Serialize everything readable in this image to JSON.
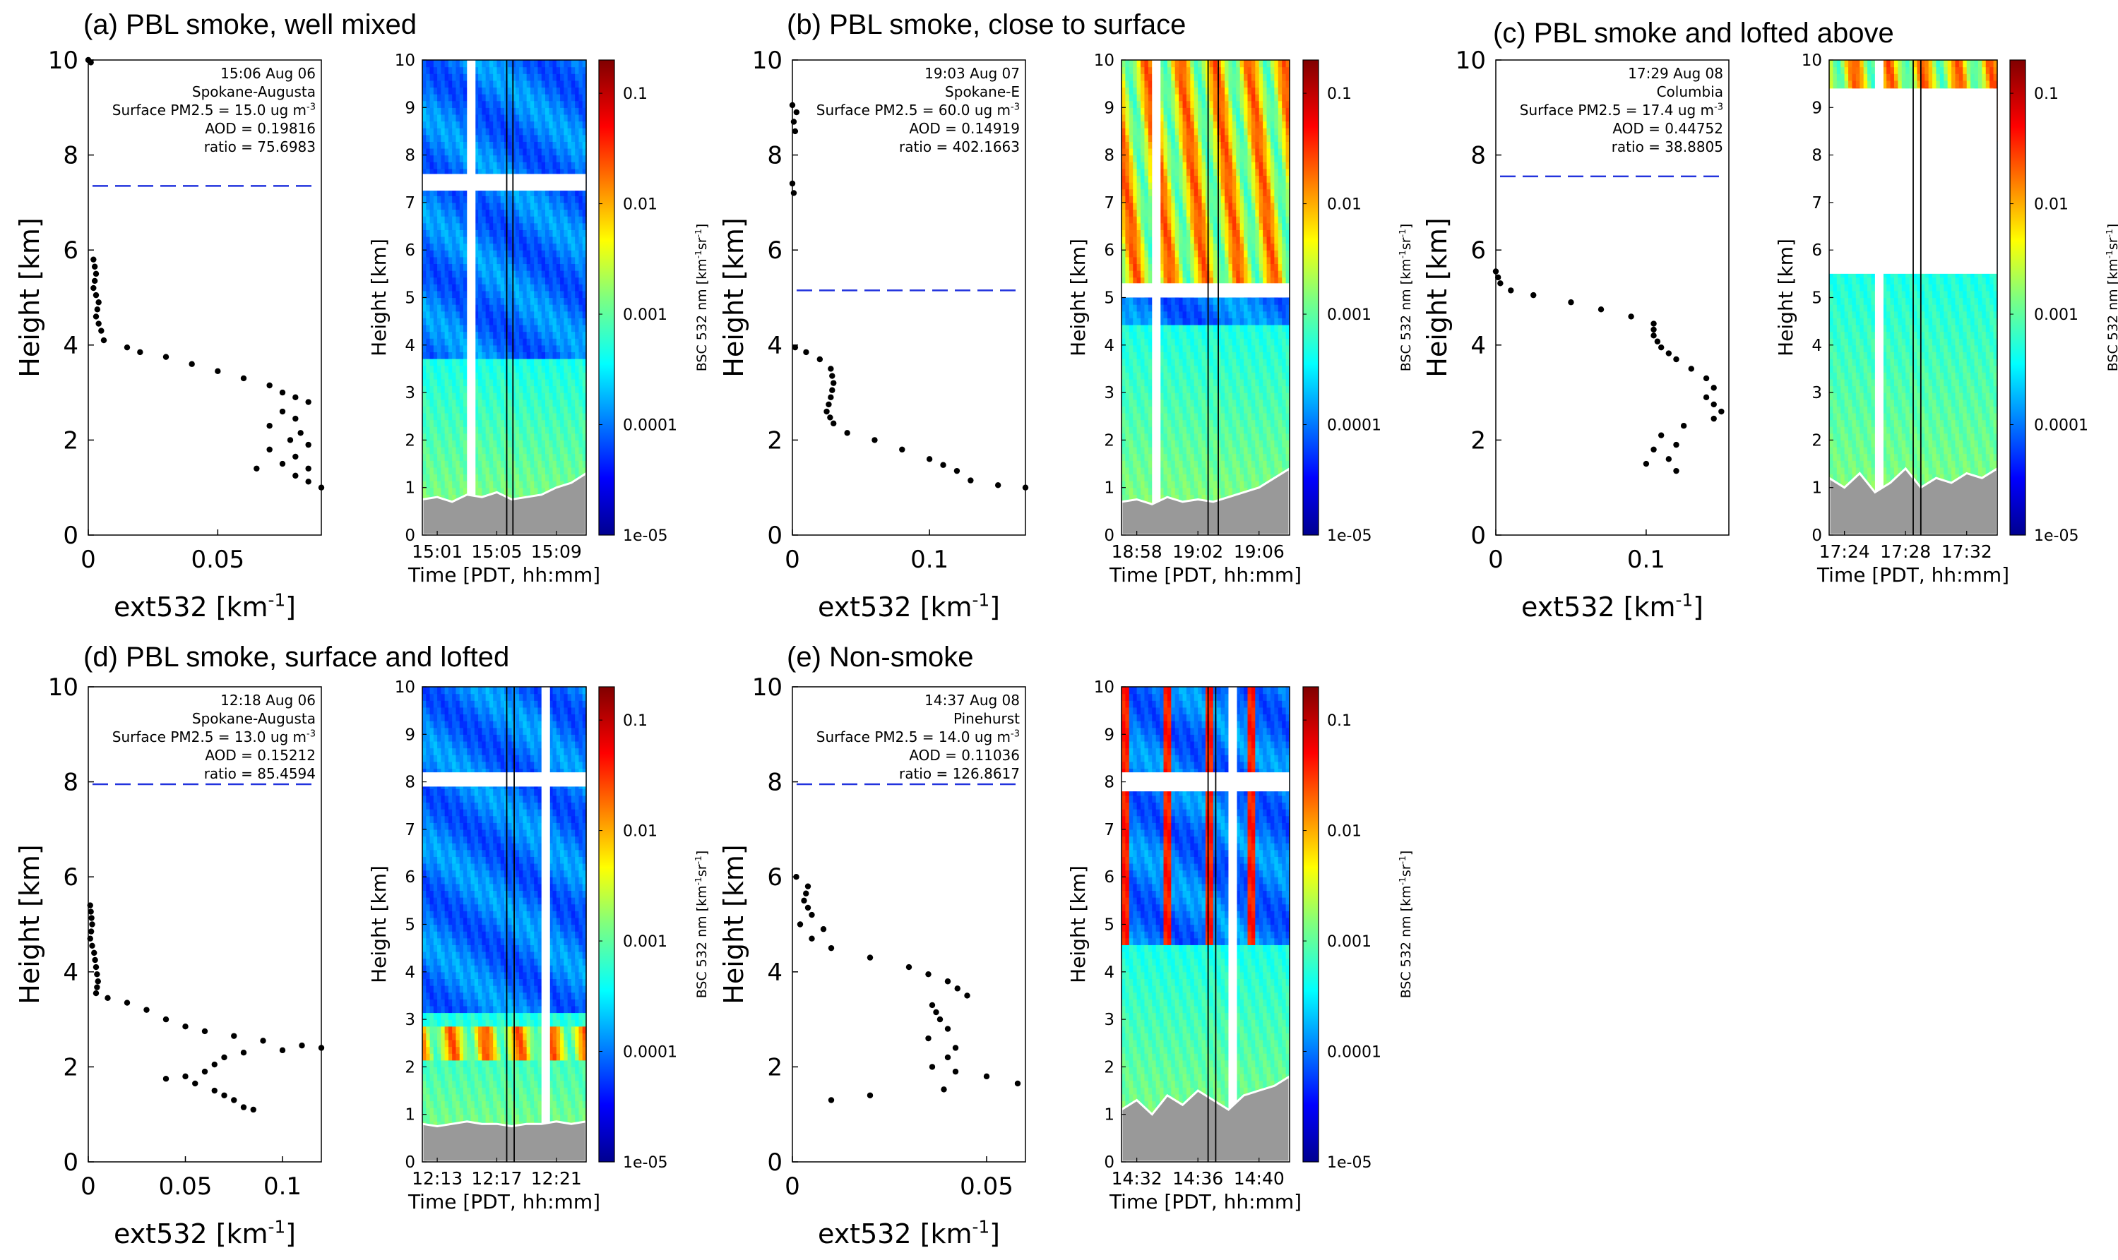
{
  "colors": {
    "dots": "#000000",
    "dash": "#2233dd",
    "ground": "#999999",
    "frame": "#000000"
  },
  "colorbar": {
    "label": "BSC 532 nm [km⁻¹sr⁻¹]",
    "ticks": [
      "0.1",
      "0.01",
      "0.001",
      "0.0001",
      "1e-05"
    ],
    "range": [
      1e-05,
      0.2
    ],
    "scale": "log",
    "colormap": "jet"
  },
  "chart_data": [
    {
      "panel": "a",
      "title": "(a) PBL smoke, well mixed",
      "type": "scatter",
      "xlabel": "ext532 [km⁻¹]",
      "ylabel": "Height [km]",
      "xlim": [
        0,
        0.09
      ],
      "ylim": [
        0,
        10
      ],
      "xticks": [
        "0",
        "0.05"
      ],
      "xtick_values": [
        0,
        0.05
      ],
      "yticks": [
        "0",
        "2",
        "4",
        "6",
        "8",
        "10"
      ],
      "annotation": [
        "15:06 Aug 06",
        "Spokane-Augusta",
        "Surface PM2.5 = 15.0 ug m⁻³",
        "AOD = 0.19816",
        "ratio = 75.6983"
      ],
      "dashed_line_height": 7.35,
      "profile": [
        [
          0.0,
          10.0
        ],
        [
          0.001,
          9.95
        ],
        [
          0.002,
          5.8
        ],
        [
          0.003,
          5.5
        ],
        [
          0.002,
          5.2
        ],
        [
          0.004,
          4.9
        ],
        [
          0.003,
          4.6
        ],
        [
          0.005,
          4.3
        ],
        [
          0.006,
          4.1
        ],
        [
          0.015,
          3.95
        ],
        [
          0.02,
          3.85
        ],
        [
          0.03,
          3.75
        ],
        [
          0.04,
          3.6
        ],
        [
          0.05,
          3.45
        ],
        [
          0.06,
          3.3
        ],
        [
          0.07,
          3.15
        ],
        [
          0.075,
          3.0
        ],
        [
          0.08,
          2.9
        ],
        [
          0.085,
          2.8
        ],
        [
          0.075,
          2.6
        ],
        [
          0.08,
          2.45
        ],
        [
          0.07,
          2.3
        ],
        [
          0.082,
          2.15
        ],
        [
          0.078,
          2.0
        ],
        [
          0.085,
          1.9
        ],
        [
          0.07,
          1.8
        ],
        [
          0.08,
          1.65
        ],
        [
          0.075,
          1.5
        ],
        [
          0.085,
          1.4
        ],
        [
          0.065,
          1.4
        ],
        [
          0.08,
          1.25
        ],
        [
          0.09,
          1.0
        ]
      ],
      "curtain": {
        "xlabel": "Time [PDT, hh:mm]",
        "ylabel": "Height [km]",
        "xticks": [
          "15:01",
          "15:05",
          "15:09"
        ],
        "time_range": [
          "15:00",
          "15:11"
        ],
        "ylim": [
          0,
          10
        ],
        "pbl_top": 3.7,
        "ground": [
          0.75,
          0.8,
          0.7,
          0.85,
          0.8,
          0.9,
          0.75,
          0.8,
          0.85,
          1.0,
          1.1,
          1.3
        ],
        "gap_heights": [
          7.25,
          7.6
        ],
        "gap_times": [
          "15:03",
          "15:03"
        ],
        "marker_times": [
          "15:05:40",
          "15:06:05"
        ],
        "lofted": null,
        "clouds": null
      }
    },
    {
      "panel": "b",
      "title": "(b) PBL smoke, close to surface",
      "type": "scatter",
      "xlabel": "ext532 [km⁻¹]",
      "ylabel": "Height [km]",
      "xlim": [
        0,
        0.17
      ],
      "ylim": [
        0,
        10
      ],
      "xticks": [
        "0",
        "0.1"
      ],
      "xtick_values": [
        0,
        0.1
      ],
      "yticks": [
        "0",
        "2",
        "4",
        "6",
        "8",
        "10"
      ],
      "annotation": [
        "19:03 Aug 07",
        "Spokane-E",
        "Surface PM2.5 = 60.0 ug m⁻³",
        "AOD = 0.14919",
        "ratio = 402.1663"
      ],
      "dashed_line_height": 5.15,
      "profile": [
        [
          0.0,
          9.05
        ],
        [
          0.003,
          8.9
        ],
        [
          0.001,
          8.7
        ],
        [
          0.002,
          8.5
        ],
        [
          0.0,
          7.4
        ],
        [
          0.001,
          7.2
        ],
        [
          0.002,
          3.95
        ],
        [
          0.01,
          3.85
        ],
        [
          0.02,
          3.7
        ],
        [
          0.028,
          3.5
        ],
        [
          0.03,
          3.2
        ],
        [
          0.028,
          2.9
        ],
        [
          0.025,
          2.6
        ],
        [
          0.03,
          2.35
        ],
        [
          0.04,
          2.15
        ],
        [
          0.06,
          2.0
        ],
        [
          0.08,
          1.8
        ],
        [
          0.1,
          1.6
        ],
        [
          0.12,
          1.35
        ],
        [
          0.13,
          1.15
        ],
        [
          0.15,
          1.05
        ],
        [
          0.17,
          1.0
        ]
      ],
      "curtain": {
        "xlabel": "Time [PDT, hh:mm]",
        "ylabel": "Height [km]",
        "xticks": [
          "18:58",
          "19:02",
          "19:06"
        ],
        "time_range": [
          "18:57",
          "19:08"
        ],
        "ylim": [
          0,
          10
        ],
        "pbl_top": 4.5,
        "ground": [
          0.7,
          0.75,
          0.65,
          0.8,
          0.7,
          0.75,
          0.7,
          0.8,
          0.9,
          1.0,
          1.2,
          1.4
        ],
        "gap_heights": [
          5.0,
          5.3
        ],
        "gap_times": [
          "18:59",
          "18:59"
        ],
        "marker_times": [
          "19:02:40",
          "19:03:20"
        ],
        "lofted": [
          5.3,
          10.0
        ],
        "clouds": null
      }
    },
    {
      "panel": "c",
      "title": "(c) PBL smoke and lofted above",
      "type": "scatter",
      "xlabel": "ext532 [km⁻¹]",
      "ylabel": "Height [km]",
      "xlim": [
        0,
        0.155
      ],
      "ylim": [
        0,
        10
      ],
      "xticks": [
        "0",
        "0.1"
      ],
      "xtick_values": [
        0,
        0.1
      ],
      "yticks": [
        "0",
        "2",
        "4",
        "6",
        "8",
        "10"
      ],
      "annotation": [
        "17:29 Aug 08",
        "Columbia",
        "Surface PM2.5 = 17.4 ug m⁻³",
        "AOD = 0.44752",
        "ratio = 38.8805"
      ],
      "dashed_line_height": 7.55,
      "profile": [
        [
          0.0,
          5.55
        ],
        [
          0.003,
          5.3
        ],
        [
          0.01,
          5.15
        ],
        [
          0.025,
          5.05
        ],
        [
          0.05,
          4.9
        ],
        [
          0.07,
          4.75
        ],
        [
          0.09,
          4.6
        ],
        [
          0.105,
          4.45
        ],
        [
          0.105,
          4.2
        ],
        [
          0.11,
          3.95
        ],
        [
          0.12,
          3.7
        ],
        [
          0.13,
          3.5
        ],
        [
          0.14,
          3.3
        ],
        [
          0.145,
          3.1
        ],
        [
          0.14,
          2.9
        ],
        [
          0.15,
          2.6
        ],
        [
          0.145,
          2.45
        ],
        [
          0.125,
          2.3
        ],
        [
          0.11,
          2.1
        ],
        [
          0.12,
          1.9
        ],
        [
          0.105,
          1.8
        ],
        [
          0.115,
          1.6
        ],
        [
          0.1,
          1.5
        ],
        [
          0.12,
          1.35
        ]
      ],
      "curtain": {
        "xlabel": "Time [PDT, hh:mm]",
        "ylabel": "Height [km]",
        "xticks": [
          "17:24",
          "17:28",
          "17:32"
        ],
        "time_range": [
          "17:23",
          "17:34"
        ],
        "ylim": [
          0,
          10
        ],
        "pbl_top": 5.6,
        "ground": [
          1.2,
          1.0,
          1.3,
          0.9,
          1.1,
          1.4,
          1.0,
          1.2,
          1.1,
          1.3,
          1.2,
          1.4
        ],
        "gap_heights": [
          5.5,
          9.4
        ],
        "gap_times": [
          "17:26",
          "17:33"
        ],
        "marker_times": [
          "17:28:30",
          "17:29:00"
        ],
        "lofted": [
          8.3,
          10.0
        ],
        "clouds": null
      }
    },
    {
      "panel": "d",
      "title": "(d) PBL smoke, surface and lofted",
      "type": "scatter",
      "xlabel": "ext532 [km⁻¹]",
      "ylabel": "Height [km]",
      "xlim": [
        0,
        0.12
      ],
      "ylim": [
        0,
        10
      ],
      "xticks": [
        "0",
        "0.05",
        "0.1"
      ],
      "xtick_values": [
        0,
        0.05,
        0.1
      ],
      "yticks": [
        "0",
        "2",
        "4",
        "6",
        "8",
        "10"
      ],
      "annotation": [
        "12:18 Aug 06",
        "Spokane-Augusta",
        "Surface PM2.5 = 13.0 ug m⁻³",
        "AOD = 0.15212",
        "ratio = 85.4594"
      ],
      "dashed_line_height": 7.95,
      "profile": [
        [
          0.001,
          5.4
        ],
        [
          0.002,
          5.0
        ],
        [
          0.001,
          4.7
        ],
        [
          0.003,
          4.4
        ],
        [
          0.004,
          4.1
        ],
        [
          0.005,
          3.8
        ],
        [
          0.004,
          3.55
        ],
        [
          0.01,
          3.45
        ],
        [
          0.02,
          3.35
        ],
        [
          0.03,
          3.2
        ],
        [
          0.04,
          3.0
        ],
        [
          0.05,
          2.85
        ],
        [
          0.06,
          2.75
        ],
        [
          0.075,
          2.65
        ],
        [
          0.09,
          2.55
        ],
        [
          0.11,
          2.45
        ],
        [
          0.12,
          2.4
        ],
        [
          0.1,
          2.35
        ],
        [
          0.08,
          2.3
        ],
        [
          0.07,
          2.2
        ],
        [
          0.065,
          2.05
        ],
        [
          0.06,
          1.9
        ],
        [
          0.05,
          1.8
        ],
        [
          0.04,
          1.75
        ],
        [
          0.055,
          1.65
        ],
        [
          0.065,
          1.5
        ],
        [
          0.07,
          1.4
        ],
        [
          0.075,
          1.3
        ],
        [
          0.08,
          1.15
        ],
        [
          0.085,
          1.1
        ]
      ],
      "curtain": {
        "xlabel": "Time [PDT, hh:mm]",
        "ylabel": "Height [km]",
        "xticks": [
          "12:13",
          "12:17",
          "12:21"
        ],
        "time_range": [
          "12:12",
          "12:23"
        ],
        "ylim": [
          0,
          10
        ],
        "pbl_top": 3.2,
        "ground": [
          0.8,
          0.75,
          0.8,
          0.85,
          0.8,
          0.8,
          0.75,
          0.8,
          0.8,
          0.85,
          0.8,
          0.85
        ],
        "gap_heights": [
          7.9,
          8.2
        ],
        "gap_times": [
          "12:20",
          "12:21"
        ],
        "marker_times": [
          "12:17:40",
          "12:18:10"
        ],
        "lofted": [
          2.2,
          2.8
        ],
        "clouds": null
      }
    },
    {
      "panel": "e",
      "title": "(e) Non-smoke",
      "type": "scatter",
      "xlabel": "ext532 [km⁻¹]",
      "ylabel": "Height [km]",
      "xlim": [
        0,
        0.06
      ],
      "ylim": [
        0,
        10
      ],
      "xticks": [
        "0",
        "0.05"
      ],
      "xtick_values": [
        0,
        0.05
      ],
      "yticks": [
        "0",
        "2",
        "4",
        "6",
        "8",
        "10"
      ],
      "annotation": [
        "14:37 Aug 08",
        "Pinehurst",
        "Surface PM2.5 = 14.0 ug m⁻³",
        "AOD = 0.11036",
        "ratio = 126.8617"
      ],
      "dashed_line_height": 7.95,
      "profile": [
        [
          0.001,
          6.0
        ],
        [
          0.004,
          5.8
        ],
        [
          0.003,
          5.5
        ],
        [
          0.005,
          5.2
        ],
        [
          0.002,
          5.0
        ],
        [
          0.008,
          4.9
        ],
        [
          0.005,
          4.7
        ],
        [
          0.01,
          4.5
        ],
        [
          0.02,
          4.3
        ],
        [
          0.03,
          4.1
        ],
        [
          0.04,
          3.8
        ],
        [
          0.045,
          3.5
        ],
        [
          0.036,
          3.3
        ],
        [
          0.038,
          3.0
        ],
        [
          0.04,
          2.8
        ],
        [
          0.035,
          2.6
        ],
        [
          0.042,
          2.4
        ],
        [
          0.04,
          2.2
        ],
        [
          0.036,
          2.0
        ],
        [
          0.042,
          1.9
        ],
        [
          0.05,
          1.8
        ],
        [
          0.058,
          1.65
        ],
        [
          0.02,
          1.4
        ],
        [
          0.01,
          1.3
        ]
      ],
      "curtain": {
        "xlabel": "Time [PDT, hh:mm]",
        "ylabel": "Height [km]",
        "xticks": [
          "14:32",
          "14:36",
          "14:40"
        ],
        "time_range": [
          "14:31",
          "14:42"
        ],
        "ylim": [
          0,
          10
        ],
        "pbl_top": 4.6,
        "ground": [
          1.1,
          1.3,
          1.0,
          1.4,
          1.2,
          1.5,
          1.3,
          1.1,
          1.4,
          1.5,
          1.6,
          1.8
        ],
        "gap_heights": [
          7.8,
          8.2
        ],
        "gap_times": [
          "14:38",
          "14:39"
        ],
        "marker_times": [
          "14:36:40",
          "14:37:10"
        ],
        "lofted": null,
        "clouds": [
          [
            4.5,
            10.0
          ]
        ]
      }
    }
  ]
}
